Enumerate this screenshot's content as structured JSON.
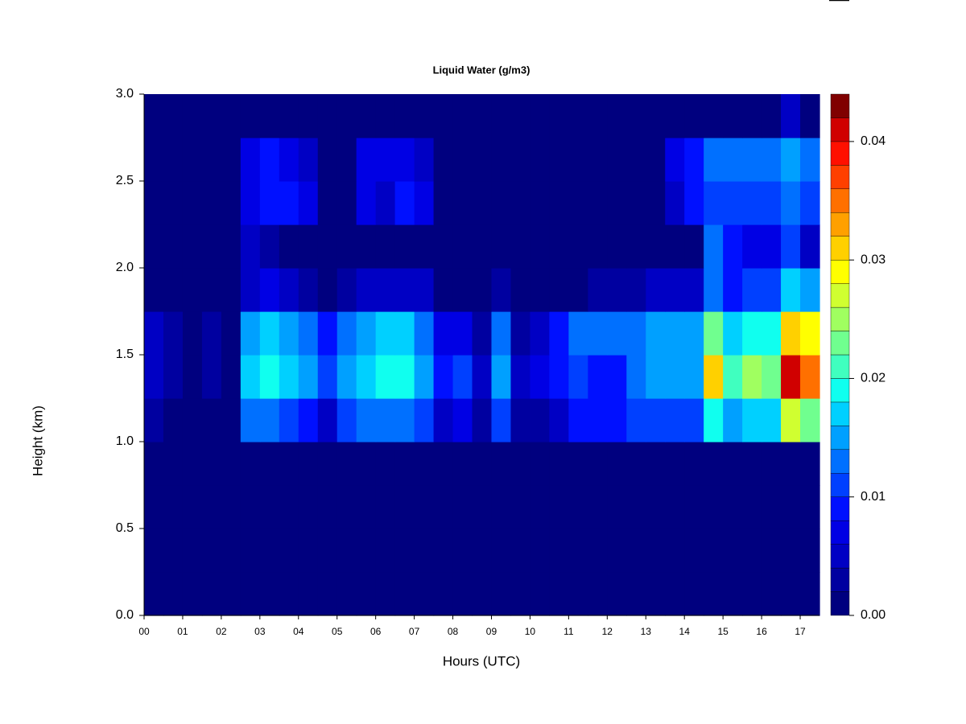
{
  "chart_data": {
    "type": "heatmap",
    "title": "Liquid Water (g/m3)",
    "x_label": "Hours (UTC)",
    "y_label": "Height (km)",
    "x": [
      0.25,
      0.75,
      1.25,
      1.75,
      2.25,
      2.75,
      3.25,
      3.75,
      4.25,
      4.75,
      5.25,
      5.75,
      6.25,
      6.75,
      7.25,
      7.75,
      8.25,
      8.75,
      9.25,
      9.75,
      10.25,
      10.75,
      11.25,
      11.75,
      12.25,
      12.75,
      13.25,
      13.75,
      14.25,
      14.75,
      15.25,
      15.75,
      16.25,
      16.75,
      17.25
    ],
    "y": [
      0.125,
      0.375,
      0.625,
      0.875,
      1.125,
      1.375,
      1.625,
      1.875,
      2.125,
      2.375,
      2.625,
      2.875
    ],
    "z": [
      [
        0,
        0,
        0,
        0,
        0,
        0,
        0,
        0,
        0,
        0,
        0,
        0,
        0,
        0,
        0,
        0,
        0,
        0,
        0,
        0,
        0,
        0,
        0,
        0,
        0,
        0,
        0,
        0,
        0,
        0,
        0,
        0,
        0,
        0,
        0
      ],
      [
        0,
        0,
        0,
        0,
        0,
        0,
        0,
        0,
        0,
        0,
        0,
        0,
        0,
        0,
        0,
        0,
        0,
        0,
        0,
        0,
        0,
        0,
        0,
        0,
        0,
        0,
        0,
        0,
        0,
        0,
        0,
        0,
        0,
        0,
        0
      ],
      [
        0,
        0,
        0,
        0,
        0,
        0,
        0,
        0,
        0,
        0,
        0,
        0,
        0,
        0,
        0,
        0,
        0,
        0,
        0,
        0,
        0,
        0,
        0,
        0,
        0,
        0,
        0,
        0,
        0,
        0,
        0,
        0,
        0,
        0,
        0
      ],
      [
        0,
        0,
        0,
        0,
        0,
        0,
        0,
        0,
        0,
        0,
        0,
        0,
        0,
        0,
        0,
        0,
        0,
        0,
        0,
        0,
        0,
        0,
        0,
        0,
        0,
        0,
        0,
        0,
        0,
        0,
        0,
        0,
        0,
        0,
        0
      ],
      [
        0.002,
        0,
        0,
        0,
        0,
        0.012,
        0.012,
        0.01,
        0.008,
        0.004,
        0.01,
        0.012,
        0.012,
        0.012,
        0.01,
        0.004,
        0.006,
        0.002,
        0.01,
        0.002,
        0.002,
        0.004,
        0.008,
        0.008,
        0.008,
        0.01,
        0.01,
        0.01,
        0.01,
        0.018,
        0.014,
        0.016,
        0.016,
        0.026,
        0.022
      ],
      [
        0.004,
        0.002,
        0,
        0.002,
        0,
        0.016,
        0.018,
        0.016,
        0.014,
        0.01,
        0.014,
        0.016,
        0.018,
        0.018,
        0.014,
        0.008,
        0.01,
        0.004,
        0.014,
        0.004,
        0.006,
        0.008,
        0.01,
        0.008,
        0.008,
        0.012,
        0.014,
        0.014,
        0.014,
        0.03,
        0.02,
        0.024,
        0.022,
        0.04,
        0.034
      ],
      [
        0.004,
        0.002,
        0,
        0.002,
        0,
        0.014,
        0.016,
        0.014,
        0.012,
        0.008,
        0.012,
        0.014,
        0.016,
        0.016,
        0.012,
        0.006,
        0.006,
        0.002,
        0.012,
        0.002,
        0.004,
        0.008,
        0.012,
        0.012,
        0.012,
        0.012,
        0.014,
        0.014,
        0.014,
        0.022,
        0.016,
        0.018,
        0.018,
        0.03,
        0.028
      ],
      [
        0,
        0,
        0,
        0,
        0,
        0.004,
        0.006,
        0.004,
        0.002,
        0,
        0.002,
        0.004,
        0.004,
        0.004,
        0.004,
        0,
        0,
        0,
        0.002,
        0,
        0,
        0,
        0,
        0.002,
        0.002,
        0.002,
        0.004,
        0.004,
        0.004,
        0.012,
        0.008,
        0.01,
        0.01,
        0.016,
        0.014
      ],
      [
        0,
        0,
        0,
        0,
        0,
        0.004,
        0.002,
        0,
        0,
        0,
        0,
        0,
        0,
        0,
        0,
        0,
        0,
        0,
        0,
        0,
        0,
        0,
        0,
        0,
        0,
        0,
        0,
        0,
        0,
        0.012,
        0.008,
        0.006,
        0.006,
        0.01,
        0.004
      ],
      [
        0,
        0,
        0,
        0,
        0,
        0.006,
        0.008,
        0.008,
        0.006,
        0,
        0,
        0.006,
        0.004,
        0.008,
        0.006,
        0,
        0,
        0,
        0,
        0,
        0,
        0,
        0,
        0,
        0,
        0,
        0,
        0.004,
        0.008,
        0.01,
        0.01,
        0.01,
        0.01,
        0.012,
        0.01
      ],
      [
        0,
        0,
        0,
        0,
        0,
        0.006,
        0.008,
        0.006,
        0.004,
        0,
        0,
        0.006,
        0.006,
        0.006,
        0.004,
        0,
        0,
        0,
        0,
        0,
        0,
        0,
        0,
        0,
        0,
        0,
        0,
        0.006,
        0.008,
        0.012,
        0.012,
        0.012,
        0.012,
        0.014,
        0.012
      ],
      [
        0,
        0,
        0,
        0,
        0,
        0,
        0,
        0,
        0,
        0,
        0,
        0,
        0,
        0,
        0,
        0,
        0,
        0,
        0,
        0,
        0,
        0,
        0,
        0,
        0,
        0,
        0,
        0,
        0,
        0,
        0,
        0,
        0,
        0.004,
        0
      ]
    ],
    "xlim": [
      0,
      17.5
    ],
    "xticks": [
      {
        "value": 0,
        "label": "00"
      },
      {
        "value": 1,
        "label": "01"
      },
      {
        "value": 2,
        "label": "02"
      },
      {
        "value": 3,
        "label": "03"
      },
      {
        "value": 4,
        "label": "04"
      },
      {
        "value": 5,
        "label": "05"
      },
      {
        "value": 6,
        "label": "06"
      },
      {
        "value": 7,
        "label": "07"
      },
      {
        "value": 8,
        "label": "08"
      },
      {
        "value": 9,
        "label": "09"
      },
      10,
      11,
      12,
      13,
      14,
      15,
      16,
      17
    ],
    "ylim": [
      0,
      3
    ],
    "yticks": [
      {
        "value": 0,
        "label": "0.0"
      },
      0.5,
      {
        "value": 1,
        "label": "1.0"
      },
      1.5,
      {
        "value": 2,
        "label": "2.0"
      },
      2.5,
      {
        "value": 3,
        "label": "3.0"
      }
    ],
    "zlim": [
      0,
      0.044
    ],
    "zticks": [
      {
        "value": 0,
        "label": "0.00"
      },
      0.01,
      0.02,
      0.03,
      0.04
    ],
    "colorscale": [
      "#00007f",
      "#0000a0",
      "#0000c4",
      "#0000e4",
      "#0010ff",
      "#0040ff",
      "#0070ff",
      "#00a0ff",
      "#00d0ff",
      "#10ffef",
      "#40ffbf",
      "#70ff8f",
      "#a0ff60",
      "#d0ff30",
      "#ffff00",
      "#ffd000",
      "#ffa000",
      "#ff7000",
      "#ff4000",
      "#ff1000",
      "#d00000",
      "#800000"
    ]
  }
}
